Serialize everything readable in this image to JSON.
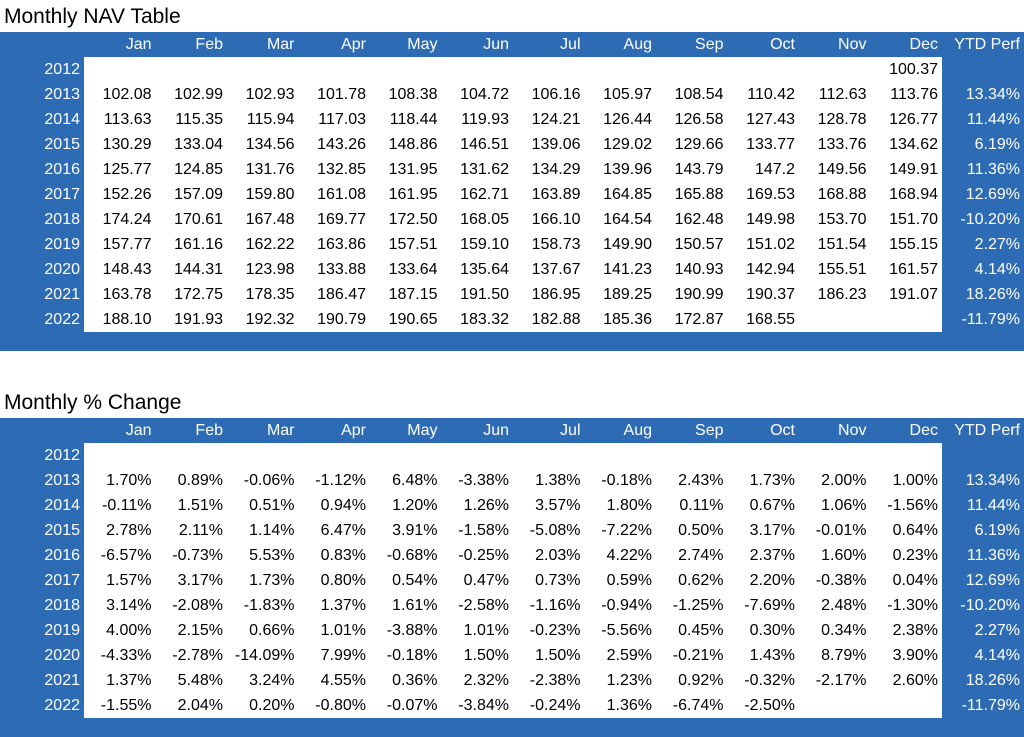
{
  "nav_section": {
    "title": "Monthly NAV Table",
    "headers": [
      "",
      "Jan",
      "Feb",
      "Mar",
      "Apr",
      "May",
      "Jun",
      "Jul",
      "Aug",
      "Sep",
      "Oct",
      "Nov",
      "Dec",
      "YTD Perf"
    ],
    "rows": [
      {
        "year": "2012",
        "values": [
          "",
          "",
          "",
          "",
          "",
          "",
          "",
          "",
          "",
          "",
          "",
          "100.37"
        ],
        "ytd": ""
      },
      {
        "year": "2013",
        "values": [
          "102.08",
          "102.99",
          "102.93",
          "101.78",
          "108.38",
          "104.72",
          "106.16",
          "105.97",
          "108.54",
          "110.42",
          "112.63",
          "113.76"
        ],
        "ytd": "13.34%"
      },
      {
        "year": "2014",
        "values": [
          "113.63",
          "115.35",
          "115.94",
          "117.03",
          "118.44",
          "119.93",
          "124.21",
          "126.44",
          "126.58",
          "127.43",
          "128.78",
          "126.77"
        ],
        "ytd": "11.44%"
      },
      {
        "year": "2015",
        "values": [
          "130.29",
          "133.04",
          "134.56",
          "143.26",
          "148.86",
          "146.51",
          "139.06",
          "129.02",
          "129.66",
          "133.77",
          "133.76",
          "134.62"
        ],
        "ytd": "6.19%"
      },
      {
        "year": "2016",
        "values": [
          "125.77",
          "124.85",
          "131.76",
          "132.85",
          "131.95",
          "131.62",
          "134.29",
          "139.96",
          "143.79",
          "147.2",
          "149.56",
          "149.91"
        ],
        "ytd": "11.36%"
      },
      {
        "year": "2017",
        "values": [
          "152.26",
          "157.09",
          "159.80",
          "161.08",
          "161.95",
          "162.71",
          "163.89",
          "164.85",
          "165.88",
          "169.53",
          "168.88",
          "168.94"
        ],
        "ytd": "12.69%"
      },
      {
        "year": "2018",
        "values": [
          "174.24",
          "170.61",
          "167.48",
          "169.77",
          "172.50",
          "168.05",
          "166.10",
          "164.54",
          "162.48",
          "149.98",
          "153.70",
          "151.70"
        ],
        "ytd": "-10.20%"
      },
      {
        "year": "2019",
        "values": [
          "157.77",
          "161.16",
          "162.22",
          "163.86",
          "157.51",
          "159.10",
          "158.73",
          "149.90",
          "150.57",
          "151.02",
          "151.54",
          "155.15"
        ],
        "ytd": "2.27%"
      },
      {
        "year": "2020",
        "values": [
          "148.43",
          "144.31",
          "123.98",
          "133.88",
          "133.64",
          "135.64",
          "137.67",
          "141.23",
          "140.93",
          "142.94",
          "155.51",
          "161.57"
        ],
        "ytd": "4.14%"
      },
      {
        "year": "2021",
        "values": [
          "163.78",
          "172.75",
          "178.35",
          "186.47",
          "187.15",
          "191.50",
          "186.95",
          "189.25",
          "190.99",
          "190.37",
          "186.23",
          "191.07"
        ],
        "ytd": "18.26%"
      },
      {
        "year": "2022",
        "values": [
          "188.10",
          "191.93",
          "192.32",
          "190.79",
          "190.65",
          "183.32",
          "182.88",
          "185.36",
          "172.87",
          "168.55",
          "",
          ""
        ],
        "ytd": "-11.79%"
      }
    ]
  },
  "pct_section": {
    "title": "Monthly % Change",
    "headers": [
      "",
      "Jan",
      "Feb",
      "Mar",
      "Apr",
      "May",
      "Jun",
      "Jul",
      "Aug",
      "Sep",
      "Oct",
      "Nov",
      "Dec",
      "YTD Perf"
    ],
    "rows": [
      {
        "year": "2012",
        "values": [
          "",
          "",
          "",
          "",
          "",
          "",
          "",
          "",
          "",
          "",
          "",
          ""
        ],
        "ytd": ""
      },
      {
        "year": "2013",
        "values": [
          "1.70%",
          "0.89%",
          "-0.06%",
          "-1.12%",
          "6.48%",
          "-3.38%",
          "1.38%",
          "-0.18%",
          "2.43%",
          "1.73%",
          "2.00%",
          "1.00%"
        ],
        "ytd": "13.34%"
      },
      {
        "year": "2014",
        "values": [
          "-0.11%",
          "1.51%",
          "0.51%",
          "0.94%",
          "1.20%",
          "1.26%",
          "3.57%",
          "1.80%",
          "0.11%",
          "0.67%",
          "1.06%",
          "-1.56%"
        ],
        "ytd": "11.44%"
      },
      {
        "year": "2015",
        "values": [
          "2.78%",
          "2.11%",
          "1.14%",
          "6.47%",
          "3.91%",
          "-1.58%",
          "-5.08%",
          "-7.22%",
          "0.50%",
          "3.17%",
          "-0.01%",
          "0.64%"
        ],
        "ytd": "6.19%"
      },
      {
        "year": "2016",
        "values": [
          "-6.57%",
          "-0.73%",
          "5.53%",
          "0.83%",
          "-0.68%",
          "-0.25%",
          "2.03%",
          "4.22%",
          "2.74%",
          "2.37%",
          "1.60%",
          "0.23%"
        ],
        "ytd": "11.36%"
      },
      {
        "year": "2017",
        "values": [
          "1.57%",
          "3.17%",
          "1.73%",
          "0.80%",
          "0.54%",
          "0.47%",
          "0.73%",
          "0.59%",
          "0.62%",
          "2.20%",
          "-0.38%",
          "0.04%"
        ],
        "ytd": "12.69%"
      },
      {
        "year": "2018",
        "values": [
          "3.14%",
          "-2.08%",
          "-1.83%",
          "1.37%",
          "1.61%",
          "-2.58%",
          "-1.16%",
          "-0.94%",
          "-1.25%",
          "-7.69%",
          "2.48%",
          "-1.30%"
        ],
        "ytd": "-10.20%"
      },
      {
        "year": "2019",
        "values": [
          "4.00%",
          "2.15%",
          "0.66%",
          "1.01%",
          "-3.88%",
          "1.01%",
          "-0.23%",
          "-5.56%",
          "0.45%",
          "0.30%",
          "0.34%",
          "2.38%"
        ],
        "ytd": "2.27%"
      },
      {
        "year": "2020",
        "values": [
          "-4.33%",
          "-2.78%",
          "-14.09%",
          "7.99%",
          "-0.18%",
          "1.50%",
          "1.50%",
          "2.59%",
          "-0.21%",
          "1.43%",
          "8.79%",
          "3.90%"
        ],
        "ytd": "4.14%"
      },
      {
        "year": "2021",
        "values": [
          "1.37%",
          "5.48%",
          "3.24%",
          "4.55%",
          "0.36%",
          "2.32%",
          "-2.38%",
          "1.23%",
          "0.92%",
          "-0.32%",
          "-2.17%",
          "2.60%"
        ],
        "ytd": "18.26%"
      },
      {
        "year": "2022",
        "values": [
          "-1.55%",
          "2.04%",
          "0.20%",
          "-0.80%",
          "-0.07%",
          "-3.84%",
          "-0.24%",
          "1.36%",
          "-6.74%",
          "-2.50%",
          "",
          ""
        ],
        "ytd": "-11.79%"
      }
    ]
  },
  "colors": {
    "panel_blue": "#2e6bb5",
    "cell_white": "#ffffff",
    "header_text": "#ffffff",
    "value_text": "#000000"
  }
}
